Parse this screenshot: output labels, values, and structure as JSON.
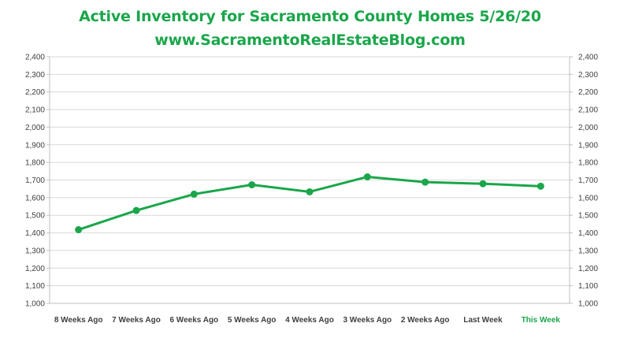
{
  "chart_data": {
    "type": "line",
    "title": "Active Inventory for Sacramento County Homes 5/26/20",
    "subtitle": "www.SacramentoRealEstateBlog.com",
    "xlabel": "",
    "ylabel": "",
    "categories": [
      "8 Weeks Ago",
      "7 Weeks Ago",
      "6 Weeks Ago",
      "5 Weeks Ago",
      "4 Weeks Ago",
      "3 Weeks Ago",
      "2 Weeks Ago",
      "Last Week",
      "This Week"
    ],
    "series": [
      {
        "values": [
          1418,
          1527,
          1620,
          1673,
          1633,
          1718,
          1688,
          1679,
          1665
        ]
      }
    ],
    "ylim": [
      1000,
      2400
    ],
    "y_tick_step": 100,
    "y_tick_labels": [
      "1,000",
      "1,100",
      "1,200",
      "1,300",
      "1,400",
      "1,500",
      "1,600",
      "1,700",
      "1,800",
      "1,900",
      "2,000",
      "2,100",
      "2,200",
      "2,300",
      "2,400"
    ],
    "secondary_y_axis": true,
    "grid": true,
    "legend": "none",
    "highlighted_category": "This Week"
  },
  "colors": {
    "title": "#1aa64a",
    "line": "#1aa64a",
    "highlight_label": "#1aa64a",
    "grid": "#d9d9d9",
    "axis": "#bfbfbf",
    "tick_text": "#404040"
  }
}
